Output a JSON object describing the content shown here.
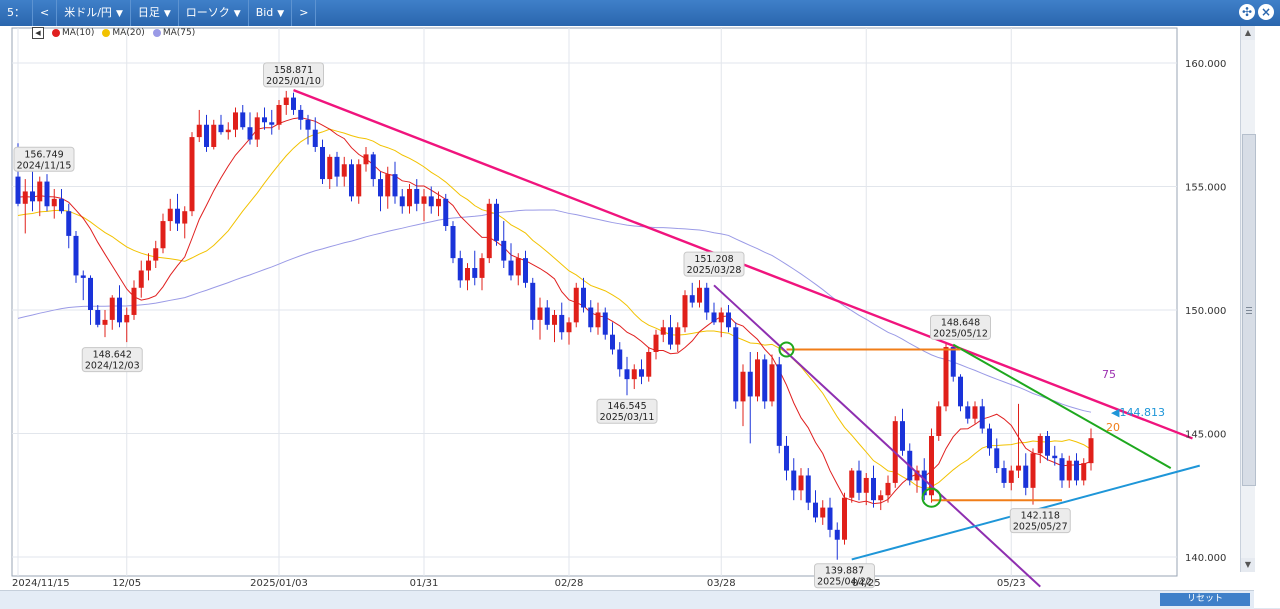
{
  "toolbar": {
    "pane": "5：",
    "prev": "<",
    "symbol": "米ドル/円",
    "period": "日足",
    "chart_type": "ローソク",
    "price_type": "Bid",
    "next": ">"
  },
  "legend": {
    "back_icon": "◀",
    "ma10": "MA(10)",
    "ma20": "MA(20)",
    "ma75": "MA(75)",
    "colors": {
      "ma10": "#e02020",
      "ma20": "#f2c200",
      "ma75": "#9a9ae6"
    }
  },
  "colors": {
    "up": "#e0201a",
    "down": "#1a33d9",
    "resistance": "#f0147d",
    "support": "#1e96d8",
    "triangle_upper": "#1ea81e",
    "wedge": "#8e2fb0",
    "horizontal": "#f07d18",
    "circle": "#1ea81e"
  },
  "y_axis": {
    "ticks": [
      "160.000",
      "155.000",
      "150.000",
      "145.000",
      "140.000"
    ],
    "values": [
      160,
      155,
      150,
      145,
      140
    ]
  },
  "x_axis": {
    "ticks": [
      "2024/11/15",
      "12/05",
      "2025/01/03",
      "01/31",
      "02/28",
      "03/28",
      "04/25",
      "05/23"
    ]
  },
  "annotations": [
    {
      "price": "156.749",
      "date": "2024/11/15"
    },
    {
      "price": "158.871",
      "date": "2025/01/10"
    },
    {
      "price": "148.642",
      "date": "2024/12/03"
    },
    {
      "price": "146.545",
      "date": "2025/03/11"
    },
    {
      "price": "151.208",
      "date": "2025/03/28"
    },
    {
      "price": "148.648",
      "date": "2025/05/12"
    },
    {
      "price": "139.887",
      "date": "2025/04/22"
    },
    {
      "price": "142.118",
      "date": "2025/05/27"
    }
  ],
  "labels": {
    "ma75_tag": "75",
    "ma20_tag": "20",
    "current_price": "◀144.813"
  },
  "nav": {
    "button": "リセット"
  },
  "chart_data": {
    "type": "candlestick",
    "symbol": "米ドル/円",
    "y_range": [
      138.5,
      160.5
    ],
    "candles": [
      [
        155.4,
        156.75,
        154.2,
        154.3
      ],
      [
        154.3,
        155.3,
        153.1,
        154.8
      ],
      [
        154.8,
        155.6,
        154.0,
        154.4
      ],
      [
        154.4,
        155.4,
        153.8,
        155.2
      ],
      [
        155.2,
        155.5,
        154.0,
        154.2
      ],
      [
        154.2,
        154.9,
        153.7,
        154.5
      ],
      [
        154.5,
        154.9,
        153.9,
        154.0
      ],
      [
        154.0,
        154.3,
        152.5,
        153.0
      ],
      [
        153.0,
        153.2,
        151.1,
        151.4
      ],
      [
        151.4,
        151.6,
        150.4,
        151.3
      ],
      [
        151.3,
        151.4,
        149.4,
        150.0
      ],
      [
        150.0,
        150.2,
        149.3,
        149.4
      ],
      [
        149.4,
        150.0,
        148.9,
        149.6
      ],
      [
        149.6,
        150.6,
        149.2,
        150.5
      ],
      [
        150.5,
        151.0,
        149.3,
        149.5
      ],
      [
        149.5,
        150.1,
        148.7,
        149.8
      ],
      [
        149.8,
        151.2,
        149.6,
        150.9
      ],
      [
        150.9,
        152.0,
        150.5,
        151.6
      ],
      [
        151.6,
        152.3,
        151.2,
        152.0
      ],
      [
        152.0,
        152.8,
        151.7,
        152.5
      ],
      [
        152.5,
        153.9,
        152.3,
        153.6
      ],
      [
        153.6,
        154.5,
        153.2,
        154.1
      ],
      [
        154.1,
        154.7,
        153.2,
        153.5
      ],
      [
        153.5,
        154.2,
        152.9,
        154.0
      ],
      [
        154.0,
        157.2,
        153.8,
        157.0
      ],
      [
        157.0,
        158.1,
        156.8,
        157.5
      ],
      [
        157.5,
        157.9,
        156.4,
        156.6
      ],
      [
        156.6,
        157.7,
        156.5,
        157.5
      ],
      [
        157.5,
        157.9,
        157.1,
        157.2
      ],
      [
        157.2,
        157.6,
        156.9,
        157.3
      ],
      [
        157.3,
        158.2,
        157.0,
        158.0
      ],
      [
        158.0,
        158.3,
        157.3,
        157.4
      ],
      [
        157.4,
        158.0,
        156.7,
        156.9
      ],
      [
        156.9,
        158.0,
        156.6,
        157.8
      ],
      [
        157.8,
        158.2,
        157.3,
        157.6
      ],
      [
        157.6,
        158.1,
        157.1,
        157.5
      ],
      [
        157.5,
        158.5,
        157.3,
        158.3
      ],
      [
        158.3,
        158.87,
        157.9,
        158.6
      ],
      [
        158.6,
        158.8,
        157.9,
        158.1
      ],
      [
        158.1,
        158.3,
        157.3,
        157.7
      ],
      [
        157.7,
        157.9,
        156.7,
        157.3
      ],
      [
        157.3,
        157.8,
        156.4,
        156.6
      ],
      [
        156.6,
        156.9,
        155.1,
        155.3
      ],
      [
        155.3,
        156.3,
        154.9,
        156.2
      ],
      [
        156.2,
        156.4,
        155.0,
        155.4
      ],
      [
        155.4,
        156.2,
        155.0,
        155.9
      ],
      [
        155.9,
        156.1,
        154.4,
        154.6
      ],
      [
        154.6,
        156.1,
        154.3,
        155.9
      ],
      [
        155.9,
        156.6,
        155.6,
        156.3
      ],
      [
        156.3,
        156.4,
        155.0,
        155.3
      ],
      [
        155.3,
        155.6,
        154.0,
        154.6
      ],
      [
        154.6,
        155.8,
        154.1,
        155.5
      ],
      [
        155.5,
        156.0,
        154.3,
        154.6
      ],
      [
        154.6,
        154.9,
        153.9,
        154.2
      ],
      [
        154.2,
        155.1,
        153.9,
        154.9
      ],
      [
        154.9,
        155.3,
        154.0,
        154.3
      ],
      [
        154.3,
        154.9,
        153.6,
        154.6
      ],
      [
        154.6,
        155.0,
        153.9,
        154.2
      ],
      [
        154.2,
        154.8,
        153.8,
        154.5
      ],
      [
        154.5,
        154.7,
        153.2,
        153.4
      ],
      [
        153.4,
        153.6,
        151.9,
        152.1
      ],
      [
        152.1,
        152.4,
        150.9,
        151.2
      ],
      [
        151.2,
        151.9,
        150.8,
        151.7
      ],
      [
        151.7,
        152.4,
        151.0,
        151.3
      ],
      [
        151.3,
        152.3,
        150.8,
        152.1
      ],
      [
        152.1,
        154.5,
        151.9,
        154.3
      ],
      [
        154.3,
        154.5,
        152.6,
        152.8
      ],
      [
        152.8,
        153.6,
        151.7,
        152.0
      ],
      [
        152.0,
        152.7,
        151.2,
        151.4
      ],
      [
        151.4,
        152.3,
        151.0,
        152.1
      ],
      [
        152.1,
        152.4,
        150.9,
        151.1
      ],
      [
        151.1,
        151.3,
        149.2,
        149.6
      ],
      [
        149.6,
        150.5,
        148.8,
        150.1
      ],
      [
        150.1,
        150.4,
        149.2,
        149.4
      ],
      [
        149.4,
        150.0,
        148.7,
        149.8
      ],
      [
        149.8,
        150.3,
        148.8,
        149.1
      ],
      [
        149.1,
        149.7,
        148.6,
        149.5
      ],
      [
        149.5,
        151.1,
        149.3,
        150.9
      ],
      [
        150.9,
        151.3,
        149.9,
        150.1
      ],
      [
        150.1,
        150.4,
        149.1,
        149.3
      ],
      [
        149.3,
        150.3,
        149.0,
        149.9
      ],
      [
        149.9,
        150.1,
        148.8,
        149.0
      ],
      [
        149.0,
        149.5,
        148.2,
        148.4
      ],
      [
        148.4,
        148.7,
        147.3,
        147.6
      ],
      [
        147.6,
        148.1,
        146.55,
        147.2
      ],
      [
        147.2,
        147.8,
        146.8,
        147.6
      ],
      [
        147.6,
        148.0,
        147.0,
        147.3
      ],
      [
        147.3,
        148.5,
        147.1,
        148.3
      ],
      [
        148.3,
        149.2,
        148.0,
        149.0
      ],
      [
        149.0,
        149.6,
        148.7,
        149.3
      ],
      [
        149.3,
        149.8,
        148.4,
        148.6
      ],
      [
        148.6,
        149.5,
        148.3,
        149.3
      ],
      [
        149.3,
        150.8,
        149.1,
        150.6
      ],
      [
        150.6,
        151.1,
        150.1,
        150.3
      ],
      [
        150.3,
        151.21,
        150.1,
        150.9
      ],
      [
        150.9,
        151.1,
        149.6,
        149.9
      ],
      [
        149.9,
        150.3,
        149.4,
        149.5
      ],
      [
        149.5,
        150.1,
        148.9,
        149.9
      ],
      [
        149.9,
        150.2,
        149.1,
        149.3
      ],
      [
        149.3,
        149.5,
        146.0,
        146.3
      ],
      [
        146.3,
        147.8,
        145.3,
        147.5
      ],
      [
        147.5,
        148.3,
        144.6,
        146.5
      ],
      [
        146.5,
        148.3,
        146.3,
        148.0
      ],
      [
        148.0,
        148.2,
        146.0,
        146.3
      ],
      [
        146.3,
        148.2,
        146.1,
        147.8
      ],
      [
        147.8,
        148.1,
        144.2,
        144.5
      ],
      [
        144.5,
        144.9,
        143.1,
        143.5
      ],
      [
        143.5,
        144.0,
        142.3,
        142.7
      ],
      [
        142.7,
        143.6,
        142.3,
        143.3
      ],
      [
        143.3,
        143.6,
        141.9,
        142.2
      ],
      [
        142.2,
        142.7,
        141.4,
        141.6
      ],
      [
        141.6,
        142.3,
        141.3,
        142.0
      ],
      [
        142.0,
        142.4,
        140.8,
        141.1
      ],
      [
        141.1,
        141.4,
        139.89,
        140.7
      ],
      [
        140.7,
        142.6,
        140.5,
        142.4
      ],
      [
        142.4,
        143.6,
        142.2,
        143.5
      ],
      [
        143.5,
        143.9,
        142.3,
        142.6
      ],
      [
        142.6,
        143.4,
        142.1,
        143.2
      ],
      [
        143.2,
        143.7,
        142.0,
        142.3
      ],
      [
        142.3,
        142.7,
        141.9,
        142.5
      ],
      [
        142.5,
        143.3,
        142.2,
        143.0
      ],
      [
        143.0,
        145.7,
        142.8,
        145.5
      ],
      [
        145.5,
        146.0,
        144.1,
        144.3
      ],
      [
        144.3,
        144.6,
        142.9,
        143.1
      ],
      [
        143.1,
        143.7,
        142.6,
        143.5
      ],
      [
        143.5,
        144.0,
        142.3,
        142.5
      ],
      [
        142.5,
        145.2,
        142.2,
        144.9
      ],
      [
        144.9,
        146.3,
        144.7,
        146.1
      ],
      [
        146.1,
        148.65,
        145.9,
        148.5
      ],
      [
        148.5,
        148.6,
        147.1,
        147.3
      ],
      [
        147.3,
        147.4,
        145.9,
        146.1
      ],
      [
        146.1,
        146.3,
        145.4,
        145.6
      ],
      [
        145.6,
        146.3,
        145.4,
        146.1
      ],
      [
        146.1,
        146.4,
        145.0,
        145.2
      ],
      [
        145.2,
        145.4,
        144.1,
        144.4
      ],
      [
        144.4,
        144.8,
        143.4,
        143.6
      ],
      [
        143.6,
        143.9,
        142.8,
        143.0
      ],
      [
        143.0,
        143.7,
        142.7,
        143.5
      ],
      [
        143.5,
        146.2,
        143.2,
        143.7
      ],
      [
        143.7,
        144.2,
        142.5,
        142.8
      ],
      [
        142.8,
        144.4,
        142.12,
        144.2
      ],
      [
        144.2,
        145.0,
        143.8,
        144.9
      ],
      [
        144.9,
        145.1,
        143.9,
        144.1
      ],
      [
        144.1,
        144.5,
        143.7,
        144.0
      ],
      [
        144.0,
        144.2,
        142.8,
        143.1
      ],
      [
        143.1,
        144.1,
        142.8,
        143.9
      ],
      [
        143.9,
        144.2,
        142.9,
        143.1
      ],
      [
        143.1,
        144.0,
        142.9,
        143.8
      ],
      [
        143.8,
        145.2,
        143.5,
        144.81
      ]
    ]
  }
}
